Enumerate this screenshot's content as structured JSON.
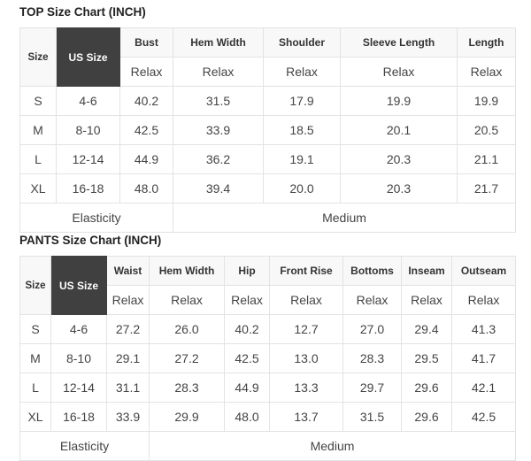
{
  "top": {
    "title": "TOP Size Chart (INCH)",
    "size_label": "Size",
    "us_label": "US Size",
    "columns": [
      "Bust",
      "Hem Width",
      "Shoulder",
      "Sleeve Length",
      "Length"
    ],
    "sub": [
      "Relax",
      "Relax",
      "Relax",
      "Relax",
      "Relax"
    ],
    "rows": [
      {
        "size": "S",
        "us": "4-6",
        "values": [
          "40.2",
          "31.5",
          "17.9",
          "19.9",
          "19.9"
        ]
      },
      {
        "size": "M",
        "us": "8-10",
        "values": [
          "42.5",
          "33.9",
          "18.5",
          "20.1",
          "20.5"
        ]
      },
      {
        "size": "L",
        "us": "12-14",
        "values": [
          "44.9",
          "36.2",
          "19.1",
          "20.3",
          "21.1"
        ]
      },
      {
        "size": "XL",
        "us": "16-18",
        "values": [
          "48.0",
          "39.4",
          "20.0",
          "20.3",
          "21.7"
        ]
      }
    ],
    "elasticity_label": "Elasticity",
    "elasticity_value": "Medium"
  },
  "pants": {
    "title": "PANTS Size Chart (INCH)",
    "size_label": "Size",
    "us_label": "US Size",
    "columns": [
      "Waist",
      "Hem Width",
      "Hip",
      "Front Rise",
      "Bottoms",
      "Inseam",
      "Outseam"
    ],
    "sub": [
      "Relax",
      "Relax",
      "Relax",
      "Relax",
      "Relax",
      "Relax",
      "Relax"
    ],
    "rows": [
      {
        "size": "S",
        "us": "4-6",
        "values": [
          "27.2",
          "26.0",
          "40.2",
          "12.7",
          "27.0",
          "29.4",
          "41.3"
        ]
      },
      {
        "size": "M",
        "us": "8-10",
        "values": [
          "29.1",
          "27.2",
          "42.5",
          "13.0",
          "28.3",
          "29.5",
          "41.7"
        ]
      },
      {
        "size": "L",
        "us": "12-14",
        "values": [
          "31.1",
          "28.3",
          "44.9",
          "13.3",
          "29.7",
          "29.6",
          "42.1"
        ]
      },
      {
        "size": "XL",
        "us": "16-18",
        "values": [
          "33.9",
          "29.9",
          "48.0",
          "13.7",
          "31.5",
          "29.6",
          "42.5"
        ]
      }
    ],
    "elasticity_label": "Elasticity",
    "elasticity_value": "Medium"
  }
}
